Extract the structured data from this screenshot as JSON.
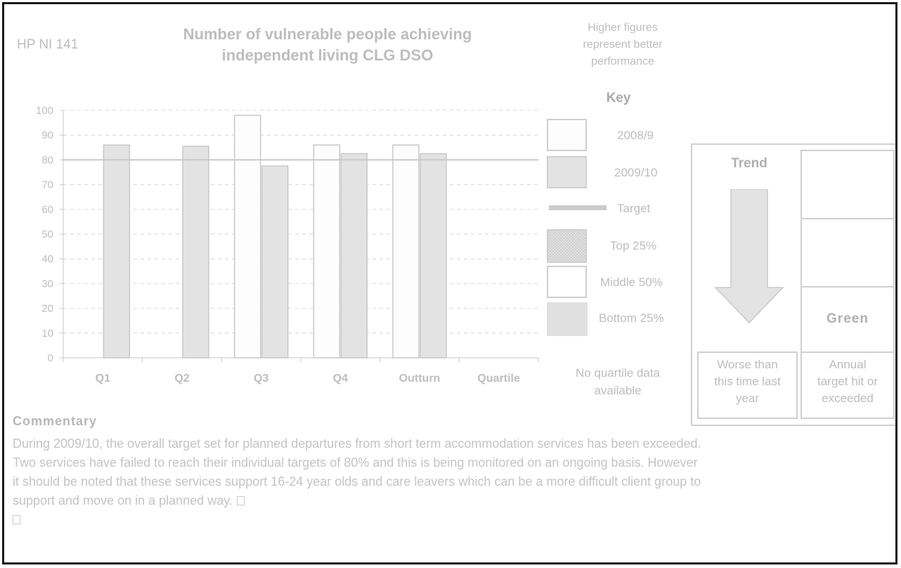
{
  "header": {
    "ref": "HP NI 141",
    "title_line1": "Number of vulnerable people achieving",
    "title_line2": "independent living CLG DSO",
    "note_line1": "Higher figures",
    "note_line2": "represent better",
    "note_line3": "performance"
  },
  "key": {
    "title": "Key",
    "items": [
      {
        "label": "2008/9",
        "icon": "white-bar-swatch"
      },
      {
        "label": "2009/10",
        "icon": "grey-bar-swatch"
      },
      {
        "label": "Target",
        "icon": "target-line-swatch"
      },
      {
        "label": "Top 25%",
        "icon": "hatched-swatch"
      },
      {
        "label": "Middle 50%",
        "icon": "outlined-swatch"
      },
      {
        "label": "Bottom 25%",
        "icon": "solid-swatch"
      }
    ],
    "no_quartile_line1": "No quartile data",
    "no_quartile_line2": "available"
  },
  "trend": {
    "title": "Trend",
    "arrow_icon": "down-arrow-icon",
    "caption_line1": "Worse than",
    "caption_line2": "this time last",
    "caption_line3": "year"
  },
  "status": {
    "label": "Green",
    "caption_line1": "Annual",
    "caption_line2": "target hit or",
    "caption_line3": "exceeded"
  },
  "commentary": {
    "heading": "Commentary",
    "line1": "During 2009/10, the overall target set for planned departures from short term accommodation services has been exceeded.",
    "line2": "Two services have failed to reach their individual targets of 80% and this is being monitored on an ongoing basis.  However",
    "line3": "it should be noted that these services support 16-24 year olds and care leavers which can be a more difficult client group to",
    "line4": "support and move on in a planned way."
  },
  "colors": {
    "series_2008": "#fdfdfd",
    "series_2009": "#e3e3e3",
    "bar_stroke": "#c8c8c8",
    "target": "#c8c8c8",
    "text": "#bdbdbd"
  },
  "chart_data": {
    "type": "bar",
    "categories": [
      "Q1",
      "Q2",
      "Q3",
      "Q4",
      "Outturn",
      "Quartile"
    ],
    "series": [
      {
        "name": "2008/9",
        "values": [
          null,
          null,
          98,
          86,
          86,
          null
        ]
      },
      {
        "name": "2009/10",
        "values": [
          86,
          85.5,
          77.5,
          82.5,
          82.5,
          null
        ]
      }
    ],
    "target": 80,
    "target_label": "Target",
    "ylim": [
      0,
      100
    ],
    "yticks": [
      0,
      10,
      20,
      30,
      40,
      50,
      60,
      70,
      80,
      90,
      100
    ],
    "grid": "dashed horizontal",
    "legend": "right"
  }
}
